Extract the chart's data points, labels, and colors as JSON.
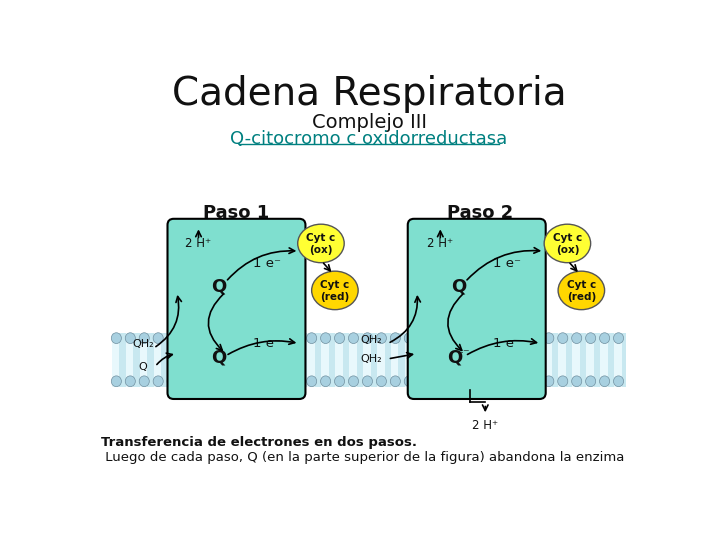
{
  "title": "Cadena Respiratoria",
  "subtitle": "Complejo III",
  "subtitle2": "Q-citocromo c oxidorreductasa",
  "subtitle2_color": "#008080",
  "paso1_label": "Paso 1",
  "paso2_label": "Paso 2",
  "caption_line1": "Transferencia de electrones en dos pasos.",
  "caption_line2": " Luego de cada paso, Q (en la parte superior de la figura) abandona la enzima",
  "bg_color": "#ffffff",
  "complex_fill": "#7FDFCF",
  "complex_edge": "#000000",
  "cyt_ox_color": "#FFFF33",
  "cyt_red_color": "#FFD700",
  "membrane_fill": "#C8E8F0",
  "membrane_head_color": "#A8D0E0",
  "membrane_head_edge": "#7090A0",
  "title_fontsize": 28,
  "subtitle_fontsize": 14,
  "subtitle2_fontsize": 13
}
